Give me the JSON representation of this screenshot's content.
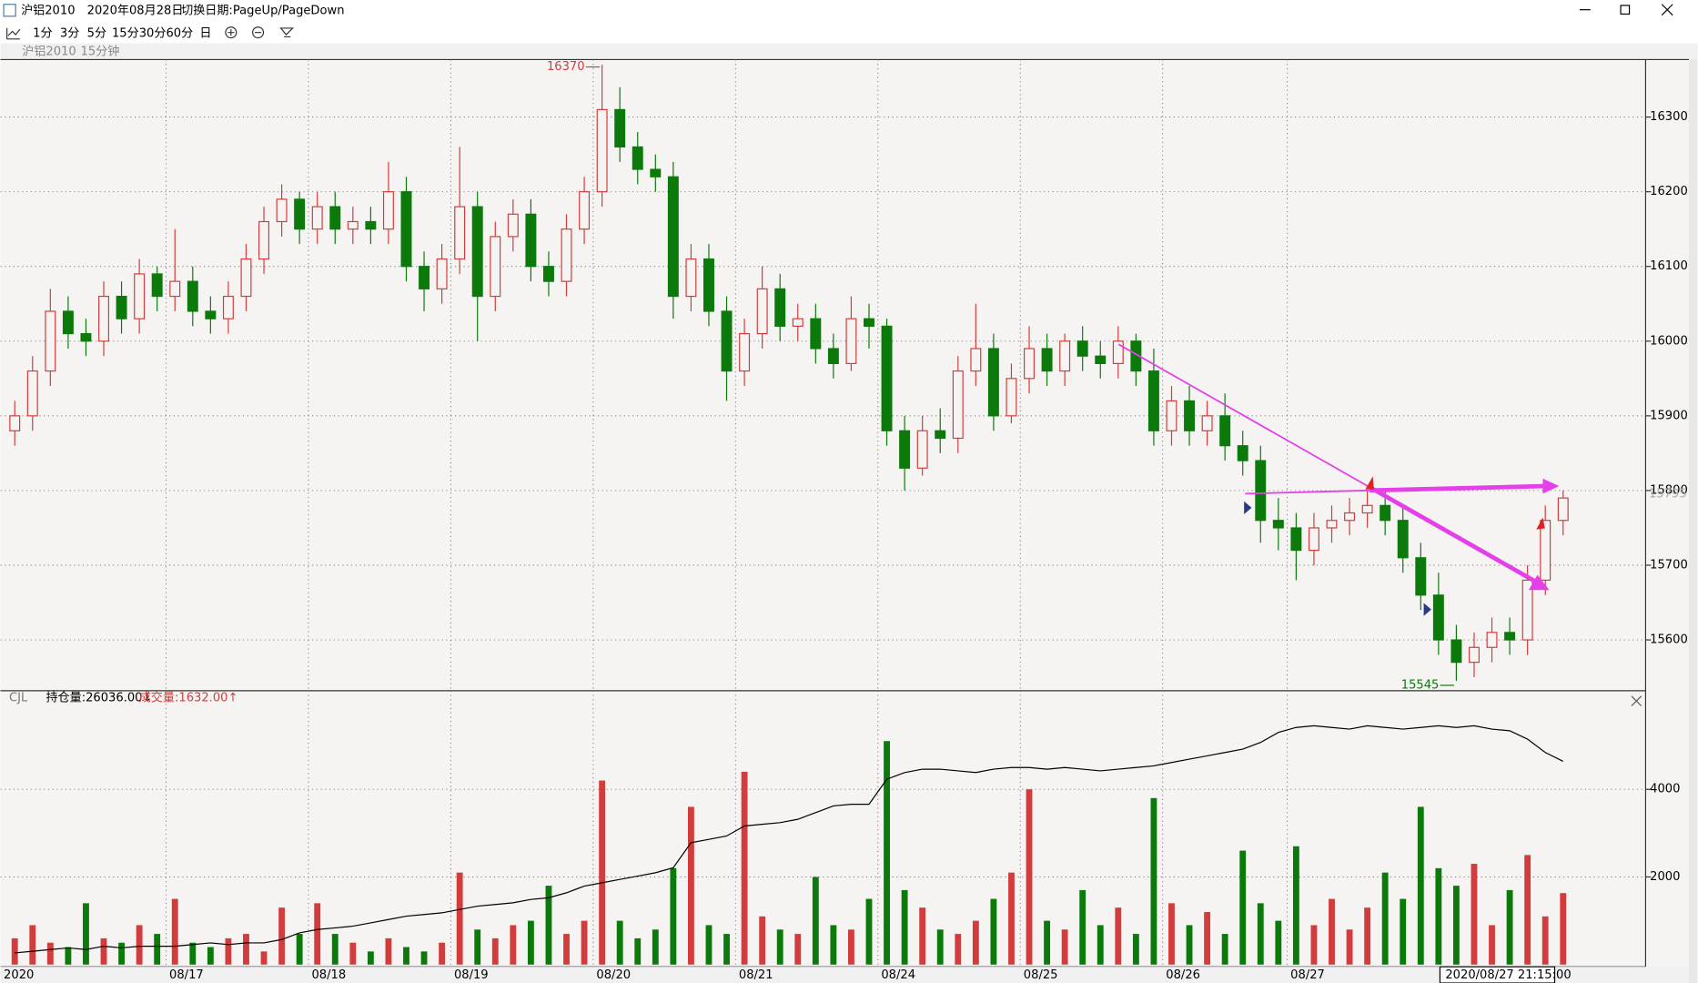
{
  "window": {
    "title": "沪铝2010",
    "date": "2020年08月28日",
    "hint": "切换日期:PageUp/PageDown"
  },
  "toolbar": [
    "1分",
    "3分",
    "5分",
    "15分",
    "30分",
    "60分",
    "日"
  ],
  "chart_data": [
    {
      "type": "candlestick",
      "title": "沪铝2010",
      "subtitle": "15分钟",
      "open": [
        15880,
        15900,
        15960,
        16040,
        16010,
        16000,
        16060,
        16030,
        16090,
        16060,
        16080,
        16040,
        16030,
        16060,
        16110,
        16160,
        16190,
        16150,
        16180,
        16150,
        16160,
        16150,
        16200,
        16100,
        16070,
        16110,
        16180,
        16060,
        16140,
        16170,
        16100,
        16080,
        16150,
        16200,
        16310,
        16260,
        16230,
        16220,
        16060,
        16110,
        16040,
        15960,
        16010,
        16070,
        16020,
        16030,
        15990,
        15970,
        16030,
        16020,
        15880,
        15830,
        15880,
        15870,
        15960,
        15990,
        15900,
        15950,
        15990,
        15960,
        16000,
        15980,
        15970,
        16000,
        15960,
        15880,
        15920,
        15880,
        15900,
        15860,
        15840,
        15760,
        15750,
        15720,
        15750,
        15760,
        15770,
        15780,
        15760,
        15710,
        15660,
        15600,
        15570,
        15590,
        15610,
        15600,
        15680,
        15760
      ],
      "high": [
        15920,
        15980,
        16070,
        16060,
        16030,
        16080,
        16080,
        16110,
        16100,
        16150,
        16100,
        16060,
        16080,
        16130,
        16180,
        16210,
        16200,
        16200,
        16200,
        16180,
        16180,
        16240,
        16220,
        16120,
        16130,
        16260,
        16200,
        16160,
        16190,
        16190,
        16120,
        16170,
        16220,
        16370,
        16340,
        16280,
        16250,
        16240,
        16130,
        16130,
        16060,
        16030,
        16100,
        16090,
        16050,
        16050,
        16010,
        16060,
        16050,
        16030,
        15900,
        15900,
        15910,
        15980,
        16050,
        16010,
        15970,
        16020,
        16010,
        16010,
        16020,
        16000,
        16020,
        16010,
        15990,
        15940,
        15940,
        15920,
        15930,
        15880,
        15860,
        15790,
        15770,
        15770,
        15780,
        15790,
        15800,
        15800,
        15780,
        15730,
        15690,
        15620,
        15610,
        15630,
        15630,
        15700,
        15780,
        15800
      ],
      "low": [
        15860,
        15880,
        15940,
        15990,
        15980,
        15980,
        16010,
        16010,
        16040,
        16040,
        16020,
        16010,
        16010,
        16040,
        16090,
        16140,
        16130,
        16130,
        16130,
        16130,
        16130,
        16130,
        16080,
        16040,
        16050,
        16090,
        16000,
        16040,
        16120,
        16080,
        16060,
        16060,
        16130,
        16180,
        16240,
        16210,
        16200,
        16030,
        16040,
        16020,
        15920,
        15940,
        15990,
        16000,
        16000,
        15970,
        15950,
        15960,
        15990,
        15860,
        15800,
        15820,
        15850,
        15850,
        15940,
        15880,
        15890,
        15930,
        15940,
        15940,
        15960,
        15950,
        15950,
        15940,
        15860,
        15860,
        15860,
        15860,
        15840,
        15820,
        15730,
        15720,
        15680,
        15700,
        15730,
        15740,
        15750,
        15740,
        15690,
        15640,
        15580,
        15545,
        15550,
        15570,
        15580,
        15580,
        15660,
        15740
      ],
      "close": [
        15900,
        15960,
        16040,
        16010,
        16000,
        16060,
        16030,
        16090,
        16060,
        16080,
        16040,
        16030,
        16060,
        16110,
        16160,
        16190,
        16150,
        16180,
        16150,
        16160,
        16150,
        16200,
        16100,
        16070,
        16110,
        16180,
        16060,
        16140,
        16170,
        16100,
        16080,
        16150,
        16200,
        16310,
        16260,
        16230,
        16220,
        16060,
        16110,
        16040,
        15960,
        16010,
        16070,
        16020,
        16030,
        15990,
        15970,
        16030,
        16020,
        15880,
        15830,
        15880,
        15870,
        15960,
        15990,
        15900,
        15950,
        15990,
        15960,
        16000,
        15980,
        15970,
        16000,
        15960,
        15880,
        15920,
        15880,
        15900,
        15860,
        15840,
        15760,
        15750,
        15720,
        15750,
        15760,
        15770,
        15780,
        15760,
        15710,
        15660,
        15600,
        15570,
        15590,
        15610,
        15600,
        15680,
        15760,
        15790
      ],
      "last_price": 15795,
      "ylim": [
        15532,
        16377
      ],
      "yticks": [
        15600,
        15700,
        15800,
        15900,
        16000,
        16100,
        16200,
        16300
      ],
      "grid": true,
      "up_color": "#d23c3c",
      "down_color": "#0b7a0b"
    },
    {
      "type": "bar",
      "name": "CJL",
      "categories": [
        "2020",
        null,
        null,
        null,
        null,
        null,
        null,
        null,
        null,
        "08/17",
        null,
        null,
        null,
        null,
        null,
        null,
        null,
        "08/18",
        null,
        null,
        null,
        null,
        null,
        null,
        null,
        "08/19",
        null,
        null,
        null,
        null,
        null,
        null,
        null,
        "08/20",
        null,
        null,
        null,
        null,
        null,
        null,
        null,
        "08/21",
        null,
        null,
        null,
        null,
        null,
        null,
        null,
        "08/24",
        null,
        null,
        null,
        null,
        null,
        null,
        null,
        "08/25",
        null,
        null,
        null,
        null,
        null,
        null,
        null,
        "08/26",
        null,
        null,
        null,
        null,
        null,
        null,
        "08/27",
        null,
        null,
        null,
        null,
        null,
        null,
        null,
        null,
        null,
        null,
        null,
        null,
        null,
        null,
        null
      ],
      "series": [
        {
          "name": "成交量",
          "value_label": ":1632.00↑",
          "color": "#d23c3c",
          "values": [
            600,
            900,
            500,
            400,
            1400,
            600,
            500,
            900,
            700,
            1500,
            500,
            400,
            600,
            700,
            300,
            1300,
            700,
            1400,
            700,
            500,
            300,
            600,
            400,
            300,
            500,
            2100,
            800,
            600,
            900,
            1000,
            1800,
            700,
            1000,
            4200,
            1000,
            600,
            800,
            2200,
            3600,
            900,
            700,
            4400,
            1100,
            800,
            700,
            2000,
            900,
            800,
            1500,
            5100,
            1700,
            1300,
            800,
            700,
            1000,
            1500,
            2100,
            4000,
            1000,
            800,
            1700,
            900,
            1300,
            700,
            3800,
            1400,
            900,
            1200,
            700,
            2600,
            1400,
            1000,
            2700,
            900,
            1500,
            800,
            1300,
            2100,
            1500,
            3600,
            2200,
            1800,
            2300,
            900,
            1700,
            2500,
            1100,
            1632
          ]
        },
        {
          "name": "持仓量",
          "value_label": ":26036.00↓",
          "color": "#000000",
          "axis": "y2",
          "values": [
            20300,
            20350,
            20400,
            20450,
            20400,
            20500,
            20450,
            20500,
            20500,
            20500,
            20550,
            20600,
            20550,
            20600,
            20600,
            20700,
            20900,
            21000,
            21050,
            21100,
            21200,
            21300,
            21400,
            21450,
            21500,
            21600,
            21700,
            21750,
            21800,
            21900,
            21950,
            22100,
            22300,
            22400,
            22500,
            22600,
            22700,
            22850,
            23600,
            23700,
            23800,
            24100,
            24150,
            24200,
            24300,
            24500,
            24700,
            24750,
            24750,
            25500,
            25700,
            25800,
            25800,
            25750,
            25700,
            25800,
            25850,
            25850,
            25800,
            25850,
            25800,
            25750,
            25800,
            25850,
            25900,
            26000,
            26100,
            26200,
            26300,
            26400,
            26600,
            26900,
            27050,
            27100,
            27050,
            27000,
            27100,
            27050,
            27000,
            27050,
            27100,
            27050,
            27100,
            27000,
            26950,
            26700,
            26300,
            26036
          ]
        }
      ],
      "ylim": [
        0,
        6250
      ],
      "yticks": [
        2000,
        4000
      ],
      "y2lim": [
        19950,
        28150
      ],
      "grid": true,
      "cursor_label": "2020/08/27 21:15:00"
    }
  ]
}
